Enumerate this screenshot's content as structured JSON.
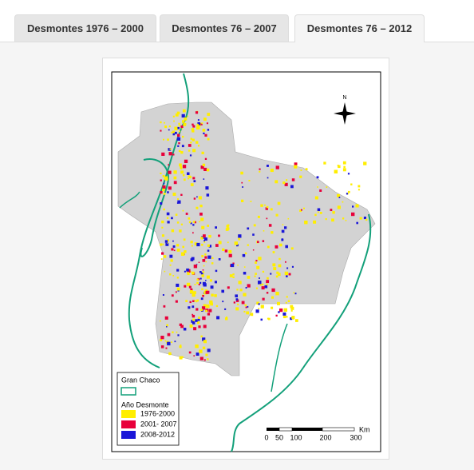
{
  "tabs": [
    "Desmontes 1976 – 2000",
    "Desmontes 76 – 2007",
    "Desmontes 76 – 2012"
  ],
  "active_tab": 2,
  "map": {
    "north": "N",
    "legend": {
      "boundary_title": "Gran Chaco",
      "year_title": "Año Desmonte",
      "items": [
        {
          "label": "1976-2000",
          "color": "#ffee00"
        },
        {
          "label": "2001- 2007",
          "color": "#e8003a"
        },
        {
          "label": "2008-2012",
          "color": "#1a16d8"
        }
      ]
    },
    "scale": {
      "labels": [
        "0",
        "50",
        "100",
        "200",
        "300"
      ],
      "unit": "Km"
    }
  }
}
